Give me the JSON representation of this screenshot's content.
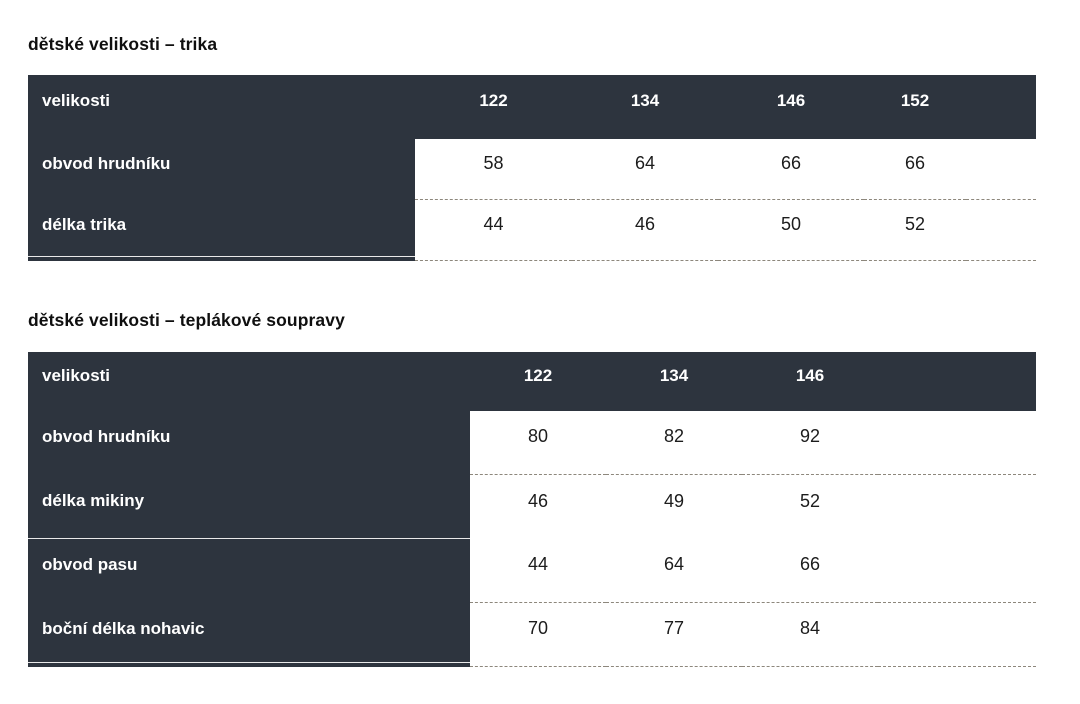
{
  "colors": {
    "header_dark": "#2d343e",
    "header_text": "#ffffff",
    "body_text": "#1c1c1c",
    "dashed_line": "#8d877c",
    "light_divider_line": "#e9e9e9",
    "page_background": "#ffffff"
  },
  "tables": [
    {
      "title": "dětské velikosti – trika",
      "header_label": "velikosti",
      "columns": [
        "122",
        "134",
        "146",
        "152"
      ],
      "rows": [
        {
          "label": "obvod hrudníku",
          "values": [
            "58",
            "64",
            "66",
            "66"
          ]
        },
        {
          "label": "délka trika",
          "values": [
            "44",
            "46",
            "50",
            "52"
          ]
        }
      ]
    },
    {
      "title": "dětské velikosti – teplákové soupravy",
      "header_label": "velikosti",
      "columns": [
        "122",
        "134",
        "146"
      ],
      "rows": [
        {
          "label": "obvod hrudníku",
          "values": [
            "80",
            "82",
            "92"
          ]
        },
        {
          "label": "délka mikiny",
          "values": [
            "46",
            "49",
            "52"
          ]
        },
        {
          "label": "obvod pasu",
          "values": [
            "44",
            "64",
            "66"
          ]
        },
        {
          "label": "boční délka nohavic",
          "values": [
            "70",
            "77",
            "84"
          ]
        }
      ]
    }
  ]
}
